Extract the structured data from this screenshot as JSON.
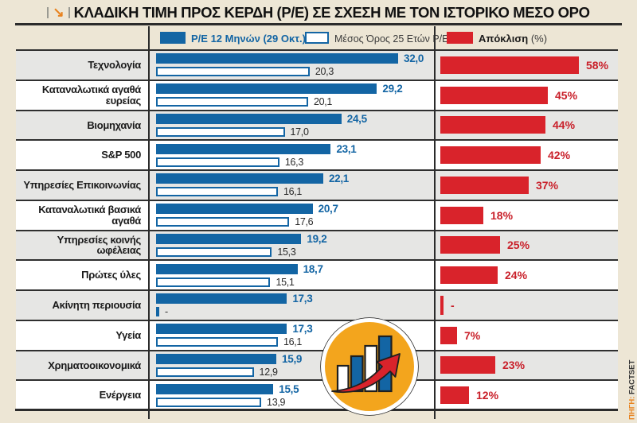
{
  "header": {
    "title": "ΚΛΑΔΙΚΗ ΤΙΜΗ ΠΡΟΣ ΚΕΡΔΗ (P/E) ΣΕ ΣΧΕΣΗ ΜΕ ΤΟΝ ΙΣΤΟΡΙΚΟ ΜΕΣΟ ΟΡΟ",
    "title_icon": "arrow-down-right-icon"
  },
  "legend": {
    "pe12": "P/E 12 Μηνών (29 Οκτ.)",
    "avg25": "Μέσος Όρος 25 Ετών P/E",
    "deviation": "Απόκλιση",
    "deviation_suffix": "(%)"
  },
  "source": {
    "prefix": "ΠΗΓΗ:",
    "name": "FACTSET"
  },
  "colors": {
    "blue": "#1365A4",
    "red": "#D9232B",
    "row_gray": "#E6E6E4",
    "row_white": "#FFFFFF",
    "background_beige": "#EDE6D5",
    "rule_dark": "#2B2B2B",
    "logo_orange": "#F3A51D",
    "source_orange": "#E8821E"
  },
  "chart_data": {
    "type": "bar",
    "orientation": "horizontal",
    "title": "ΚΛΑΔΙΚΗ ΤΙΜΗ ΠΡΟΣ ΚΕΡΔΗ (P/E) ΣΕ ΣΧΕΣΗ ΜΕ ΤΟΝ ΙΣΤΟΡΙΚΟ ΜΕΣΟ ΟΡΟ",
    "categories": [
      "Τεχνολογία",
      "Καταναλωτικά αγαθά ευρείας",
      "Βιομηχανία",
      "S&P 500",
      "Υπηρεσίες Επικοινωνίας",
      "Καταναλωτικά βασικά αγαθά",
      "Υπηρεσίες κοινής ωφέλειας",
      "Πρώτες ύλες",
      "Ακίνητη περιουσία",
      "Υγεία",
      "Χρηματοοικονομικά",
      "Ενέργεια"
    ],
    "series": [
      {
        "name": "P/E 12 Μηνών (29 Οκτ.)",
        "values": [
          32.0,
          29.2,
          24.5,
          23.1,
          22.1,
          20.7,
          19.2,
          18.7,
          17.3,
          17.3,
          15.9,
          15.5
        ]
      },
      {
        "name": "Μέσος Όρος 25 Ετών P/E",
        "values": [
          20.3,
          20.1,
          17.0,
          16.3,
          16.1,
          17.6,
          15.3,
          15.1,
          null,
          16.1,
          12.9,
          13.9
        ]
      },
      {
        "name": "Απόκλιση (%)",
        "values": [
          58,
          45,
          44,
          42,
          37,
          18,
          25,
          24,
          null,
          7,
          23,
          12
        ]
      }
    ],
    "legend_position": "top",
    "grid": false,
    "notes": "Row 'Ακίνητη περιουσία' shows a dash (no 25-year average, no deviation)"
  },
  "rows": [
    {
      "label": "Τεχνολογία",
      "pe": "32,0",
      "avg": "20,3",
      "dev": "58%",
      "pe_val": 32.0,
      "avg_val": 20.3,
      "dev_val": 58
    },
    {
      "label": "Καταναλωτικά αγαθά ευρείας",
      "pe": "29,2",
      "avg": "20,1",
      "dev": "45%",
      "pe_val": 29.2,
      "avg_val": 20.1,
      "dev_val": 45
    },
    {
      "label": "Βιομηχανία",
      "pe": "24,5",
      "avg": "17,0",
      "dev": "44%",
      "pe_val": 24.5,
      "avg_val": 17.0,
      "dev_val": 44
    },
    {
      "label": "S&P 500",
      "pe": "23,1",
      "avg": "16,3",
      "dev": "42%",
      "pe_val": 23.1,
      "avg_val": 16.3,
      "dev_val": 42
    },
    {
      "label": "Υπηρεσίες Επικοινωνίας",
      "pe": "22,1",
      "avg": "16,1",
      "dev": "37%",
      "pe_val": 22.1,
      "avg_val": 16.1,
      "dev_val": 37
    },
    {
      "label": "Καταναλωτικά βασικά αγαθά",
      "pe": "20,7",
      "avg": "17,6",
      "dev": "18%",
      "pe_val": 20.7,
      "avg_val": 17.6,
      "dev_val": 18
    },
    {
      "label": "Υπηρεσίες κοινής ωφέλειας",
      "pe": "19,2",
      "avg": "15,3",
      "dev": "25%",
      "pe_val": 19.2,
      "avg_val": 15.3,
      "dev_val": 25
    },
    {
      "label": "Πρώτες ύλες",
      "pe": "18,7",
      "avg": "15,1",
      "dev": "24%",
      "pe_val": 18.7,
      "avg_val": 15.1,
      "dev_val": 24
    },
    {
      "label": "Ακίνητη περιουσία",
      "pe": "17,3",
      "avg": "-",
      "dev": "-",
      "pe_val": 17.3,
      "avg_val": null,
      "dev_val": null
    },
    {
      "label": "Υγεία",
      "pe": "17,3",
      "avg": "16,1",
      "dev": "7%",
      "pe_val": 17.3,
      "avg_val": 16.1,
      "dev_val": 7
    },
    {
      "label": "Χρηματοοικονομικά",
      "pe": "15,9",
      "avg": "12,9",
      "dev": "23%",
      "pe_val": 15.9,
      "avg_val": 12.9,
      "dev_val": 23
    },
    {
      "label": "Ενέργεια",
      "pe": "15,5",
      "avg": "13,9",
      "dev": "12%",
      "pe_val": 15.5,
      "avg_val": 13.9,
      "dev_val": 12
    }
  ]
}
